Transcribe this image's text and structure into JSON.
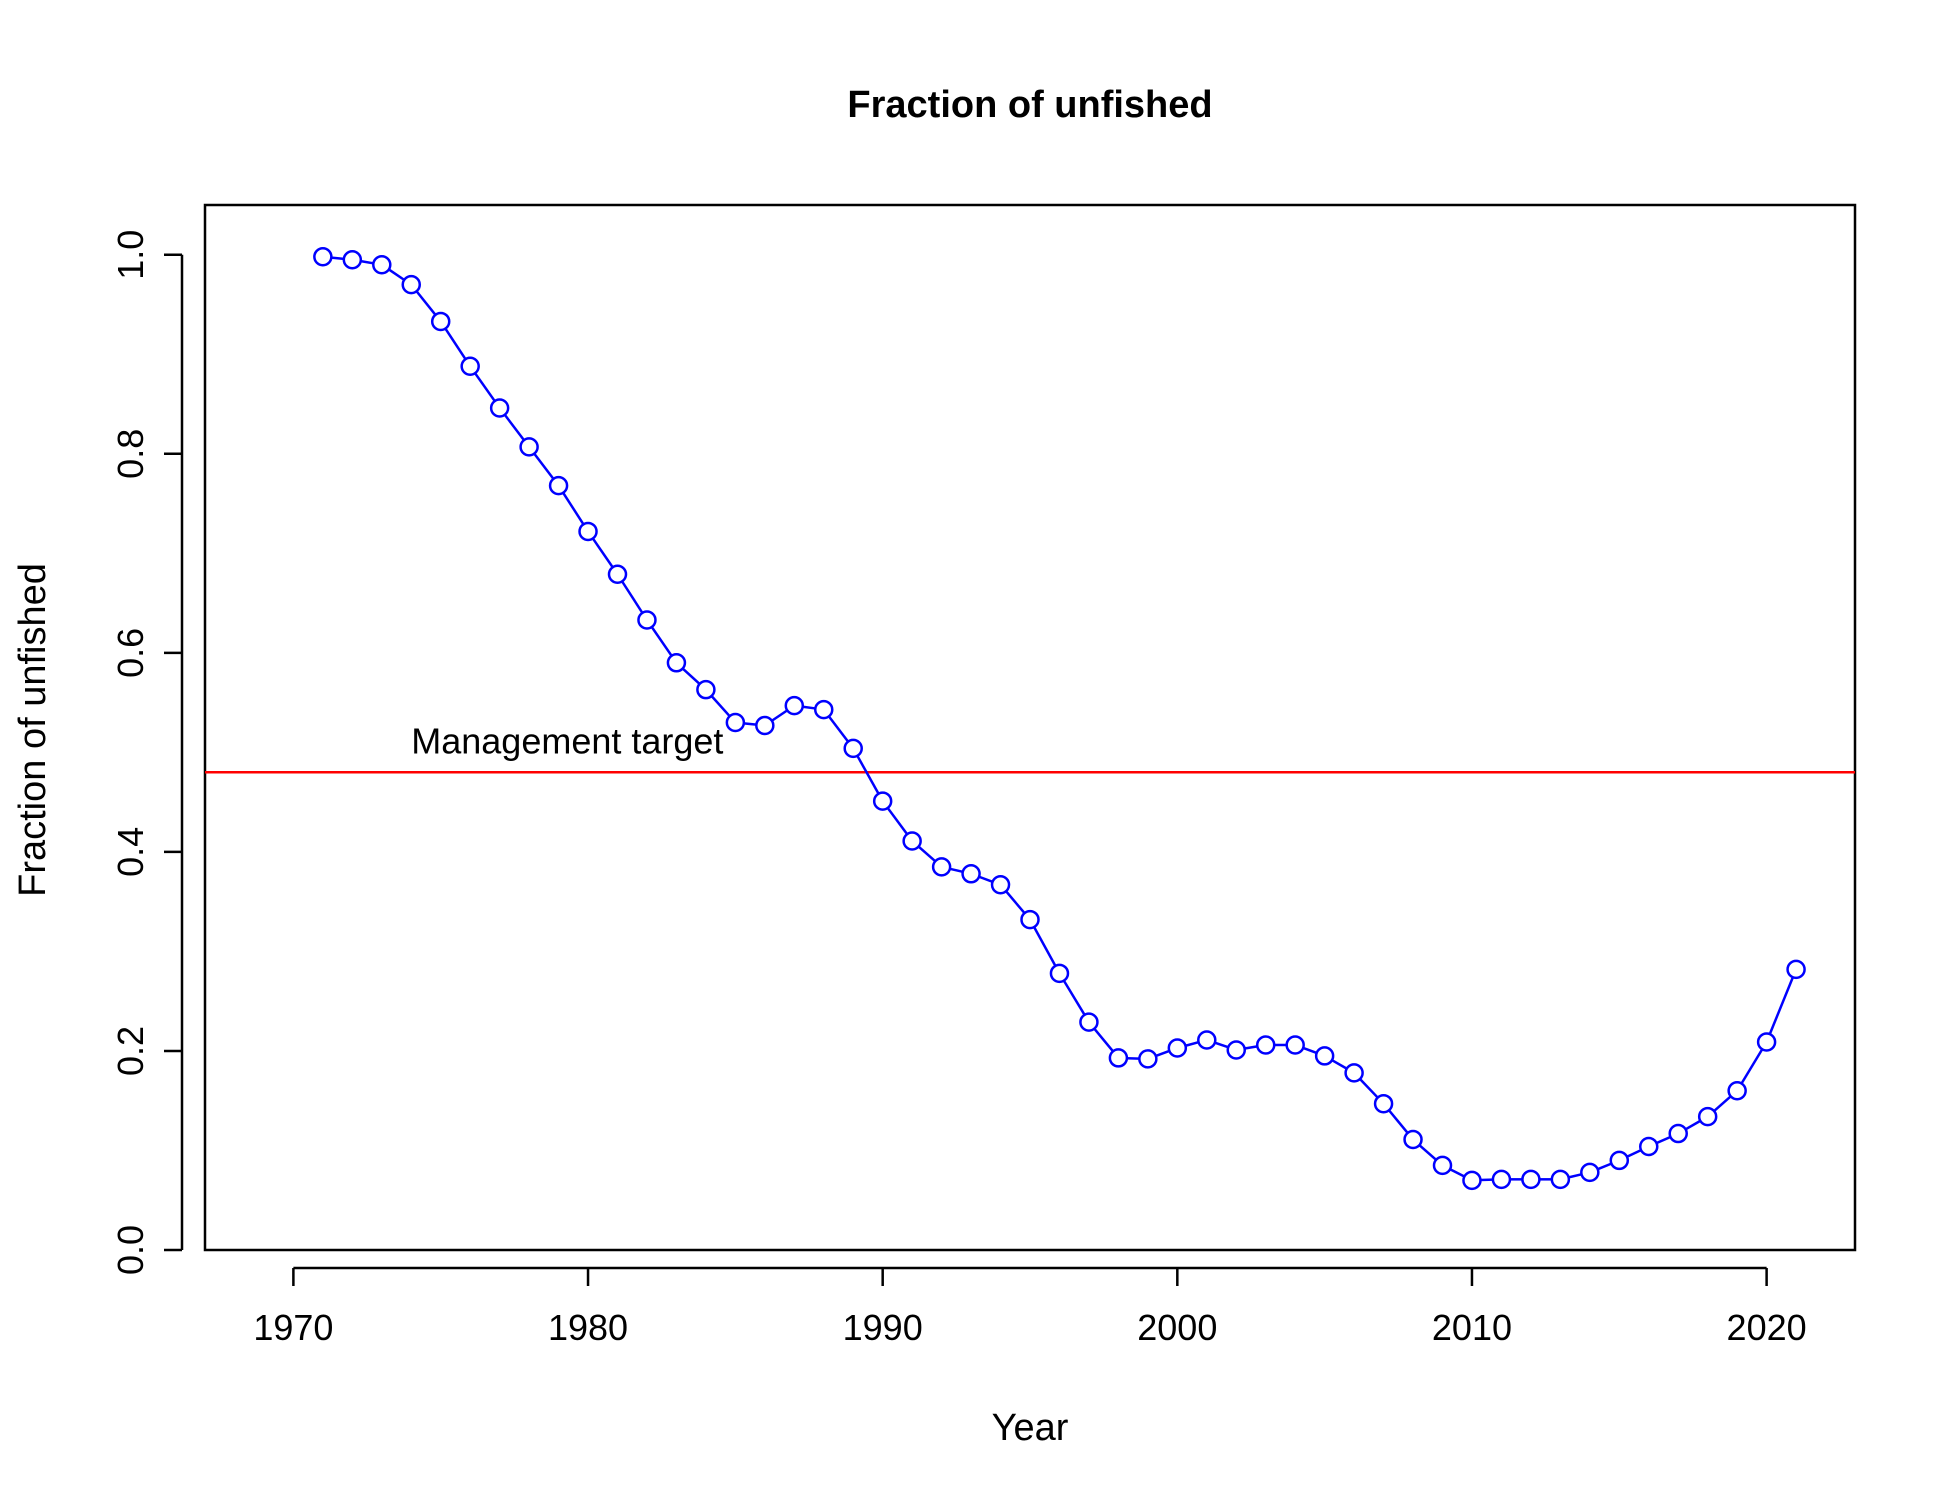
{
  "chart_data": {
    "type": "line",
    "title": "Fraction of unfished",
    "xlabel": "Year",
    "ylabel": "Fraction of unfished",
    "xlim": [
      1967,
      2023
    ],
    "ylim": [
      0,
      1.05
    ],
    "x_ticks": [
      1970,
      1980,
      1990,
      2000,
      2010,
      2020
    ],
    "x_tick_labels": [
      "1970",
      "1980",
      "1990",
      "2000",
      "2010",
      "2020"
    ],
    "y_ticks": [
      0,
      0.2,
      0.4,
      0.6,
      0.8,
      1.0
    ],
    "y_tick_labels": [
      "0.0",
      "0.2",
      "0.4",
      "0.6",
      "0.8",
      "1.0"
    ],
    "grid": false,
    "legend": "none",
    "series": [
      {
        "color": "#0000ff",
        "marker": "open-circle",
        "x": [
          1971,
          1972,
          1973,
          1974,
          1975,
          1976,
          1977,
          1978,
          1979,
          1980,
          1981,
          1982,
          1983,
          1984,
          1985,
          1986,
          1987,
          1988,
          1989,
          1990,
          1991,
          1992,
          1993,
          1994,
          1995,
          1996,
          1997,
          1998,
          1999,
          2000,
          2001,
          2002,
          2003,
          2004,
          2005,
          2006,
          2007,
          2008,
          2009,
          2010,
          2011,
          2012,
          2013,
          2014,
          2015,
          2016,
          2017,
          2018,
          2019,
          2020,
          2021
        ],
        "y": [
          0.998,
          0.995,
          0.99,
          0.97,
          0.933,
          0.888,
          0.846,
          0.807,
          0.768,
          0.722,
          0.679,
          0.633,
          0.59,
          0.563,
          0.53,
          0.527,
          0.547,
          0.543,
          0.504,
          0.451,
          0.411,
          0.385,
          0.378,
          0.367,
          0.332,
          0.278,
          0.229,
          0.193,
          0.192,
          0.203,
          0.211,
          0.201,
          0.206,
          0.206,
          0.195,
          0.178,
          0.147,
          0.111,
          0.085,
          0.07,
          0.071,
          0.071,
          0.071,
          0.078,
          0.09,
          0.104,
          0.117,
          0.134,
          0.16,
          0.209,
          0.282
        ]
      }
    ],
    "reference_line": {
      "y": 0.48,
      "color": "#ff0000",
      "label": "Management target",
      "label_x": 1974
    }
  }
}
